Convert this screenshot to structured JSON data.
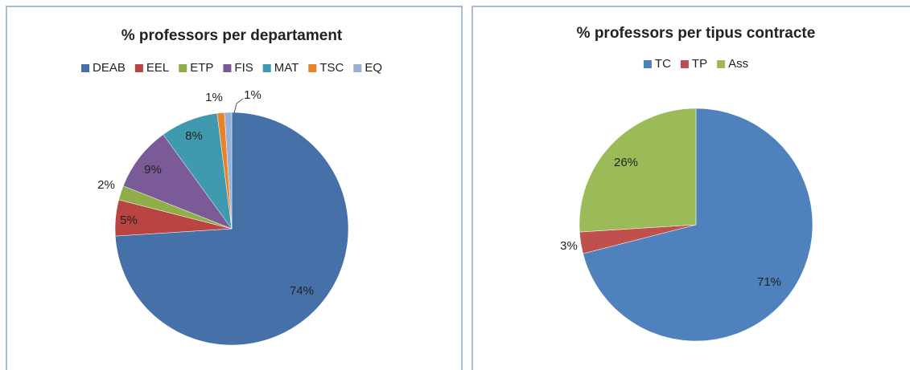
{
  "chart_data": [
    {
      "type": "pie",
      "title": "% professors per departament",
      "categories": [
        "DEAB",
        "EEL",
        "ETP",
        "FIS",
        "MAT",
        "TSC",
        "EQ"
      ],
      "values": [
        74,
        5,
        2,
        9,
        8,
        1,
        1
      ],
      "value_labels": [
        "74%",
        "5%",
        "2%",
        "9%",
        "8%",
        "1%",
        "1%"
      ],
      "colors": [
        "#4571a8",
        "#b94441",
        "#8fae4a",
        "#7a5a97",
        "#3f9ab0",
        "#e7832a",
        "#97b1d6"
      ],
      "legend": "top"
    },
    {
      "type": "pie",
      "title": "% professors per tipus contracte",
      "categories": [
        "TC",
        "TP",
        "Ass"
      ],
      "values": [
        71,
        3,
        26
      ],
      "value_labels": [
        "71%",
        "3%",
        "26%"
      ],
      "colors": [
        "#4f81bd",
        "#c0504d",
        "#9bbb59"
      ],
      "legend": "top"
    }
  ]
}
